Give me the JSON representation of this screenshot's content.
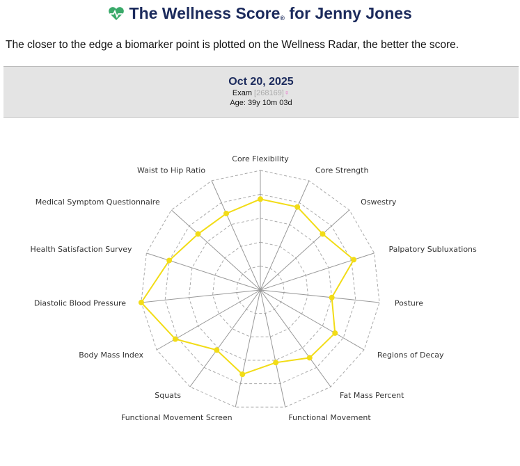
{
  "header": {
    "title_main": "The Wellness Score",
    "title_mark": "®",
    "title_suffix": "for Jenny Jones",
    "intro": "The closer to the edge a biomarker point is plotted on the Wellness Radar, the better the score.",
    "date": "Oct 20, 2025",
    "exam_label": "Exam",
    "exam_id": "[268169]",
    "sex_symbol": "♀",
    "age": "Age: 39y 10m 03d"
  },
  "chart_data": {
    "type": "radar",
    "categories": [
      "Core Flexibility",
      "Core Strength",
      "Oswestry",
      "Palpatory Subluxations",
      "Posture",
      "Regions of Decay",
      "Fat Mass Percent",
      "Functional Movement",
      "Functional Movement Screen",
      "Squats",
      "Body Mass Index",
      "Diastolic Blood Pressure",
      "Health Satisfaction Survey",
      "Medical Symptom Questionnaire",
      "Waist to Hip Ratio"
    ],
    "values": [
      3.8,
      3.8,
      3.5,
      4.1,
      3.0,
      3.6,
      3.5,
      3.1,
      3.6,
      3.1,
      4.1,
      5.0,
      4.0,
      3.5,
      3.5
    ],
    "color": "#f2dc16",
    "ylim": [
      0,
      5
    ],
    "yticks": [
      1,
      2,
      3,
      4,
      5
    ],
    "grid": true
  }
}
